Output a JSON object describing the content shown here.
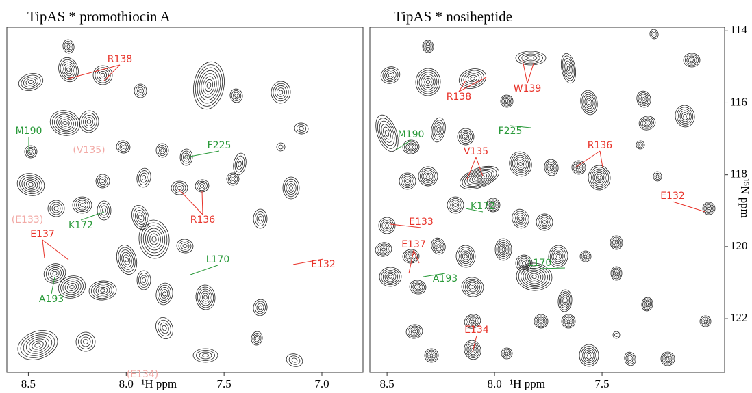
{
  "chart_data": [
    {
      "type": "contour",
      "title": "TipAS * promothiocin A",
      "x_label": "¹H ppm",
      "xlim": [
        8.61,
        6.79
      ],
      "xticks": [
        8.5,
        {
          "value": 8,
          "label": "8.0"
        },
        7.5,
        {
          "value": 7,
          "label": "7.0"
        }
      ],
      "annotations": [
        {
          "text": "R138",
          "color": "#e8332a"
        },
        {
          "text": "M190",
          "color": "#2a9a3a"
        },
        {
          "text": "(V135)",
          "color": "#f2aaa6"
        },
        {
          "text": "F225",
          "color": "#2a9a3a"
        },
        {
          "text": "(E133)",
          "color": "#f2aaa6"
        },
        {
          "text": "K172",
          "color": "#2a9a3a"
        },
        {
          "text": "R136",
          "color": "#e8332a"
        },
        {
          "text": "E137",
          "color": "#e8332a"
        },
        {
          "text": "L170",
          "color": "#2a9a3a"
        },
        {
          "text": "E132",
          "color": "#e8332a"
        },
        {
          "text": "A193",
          "color": "#2a9a3a"
        },
        {
          "text": "(E134)",
          "color": "#f2aaa6"
        }
      ]
    },
    {
      "type": "contour",
      "title": "TipAS * nosiheptide",
      "x_label": "¹H ppm",
      "y_label": "¹⁵N ppm",
      "xlim": [
        8.58,
        6.93
      ],
      "xticks": [
        8.5,
        {
          "value": 8,
          "label": "8.0"
        },
        7.5
      ],
      "ylim": [
        113.9,
        123.5
      ],
      "yticks": [
        114,
        116,
        118,
        120,
        122
      ],
      "annotations": [
        {
          "text": "W139",
          "color": "#e8332a"
        },
        {
          "text": "R138",
          "color": "#e8332a"
        },
        {
          "text": "M190",
          "color": "#2a9a3a"
        },
        {
          "text": "F225",
          "color": "#2a9a3a"
        },
        {
          "text": "V135",
          "color": "#e8332a"
        },
        {
          "text": "R136",
          "color": "#e8332a"
        },
        {
          "text": "E132",
          "color": "#e8332a"
        },
        {
          "text": "K172",
          "color": "#2a9a3a"
        },
        {
          "text": "E133",
          "color": "#e8332a"
        },
        {
          "text": "E137",
          "color": "#e8332a"
        },
        {
          "text": "L170",
          "color": "#2a9a3a"
        },
        {
          "text": "A193",
          "color": "#2a9a3a"
        },
        {
          "text": "E134",
          "color": "#e8332a"
        }
      ]
    }
  ]
}
